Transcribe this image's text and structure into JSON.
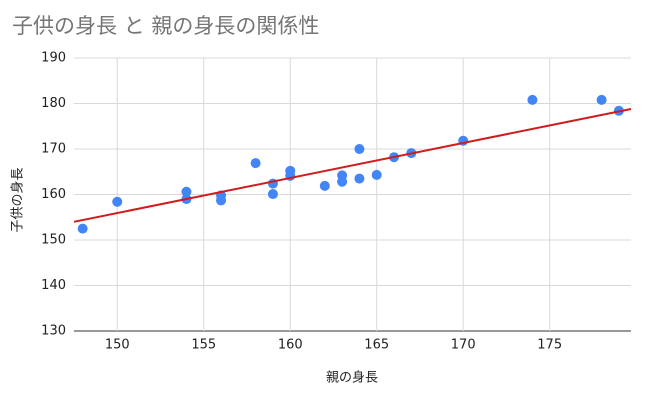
{
  "chart_data": {
    "type": "scatter",
    "title": "子供の身長 と 親の身長の関係性",
    "x_label": "親の身長",
    "y_label": "子供の身長",
    "series": [
      {
        "color": "#4285f4",
        "x": [
          148,
          150,
          154,
          154,
          156,
          156,
          158,
          159,
          159,
          160,
          160,
          162,
          163,
          163,
          164,
          164,
          165,
          166,
          167,
          170,
          174,
          178,
          179
        ],
        "values": [
          152.5,
          158.4,
          160.6,
          159,
          159.8,
          158.7,
          166.9,
          162.4,
          160.1,
          165.2,
          164.1,
          161.9,
          164.2,
          162.8,
          170,
          163.5,
          164.3,
          168.2,
          169.1,
          171.8,
          180.8,
          180.8,
          178.4
        ]
      }
    ],
    "trendline": {
      "color": "#d01c1c",
      "x": [
        147.5,
        179.7
      ],
      "values": [
        154,
        178.8
      ]
    },
    "xlim": [
      147.5,
      179.7
    ],
    "xticks": [
      150,
      155,
      160,
      165,
      170,
      175
    ],
    "ylim": [
      130,
      190
    ],
    "yticks": [
      130,
      140,
      150,
      160,
      170,
      180,
      190
    ],
    "grid": true
  }
}
